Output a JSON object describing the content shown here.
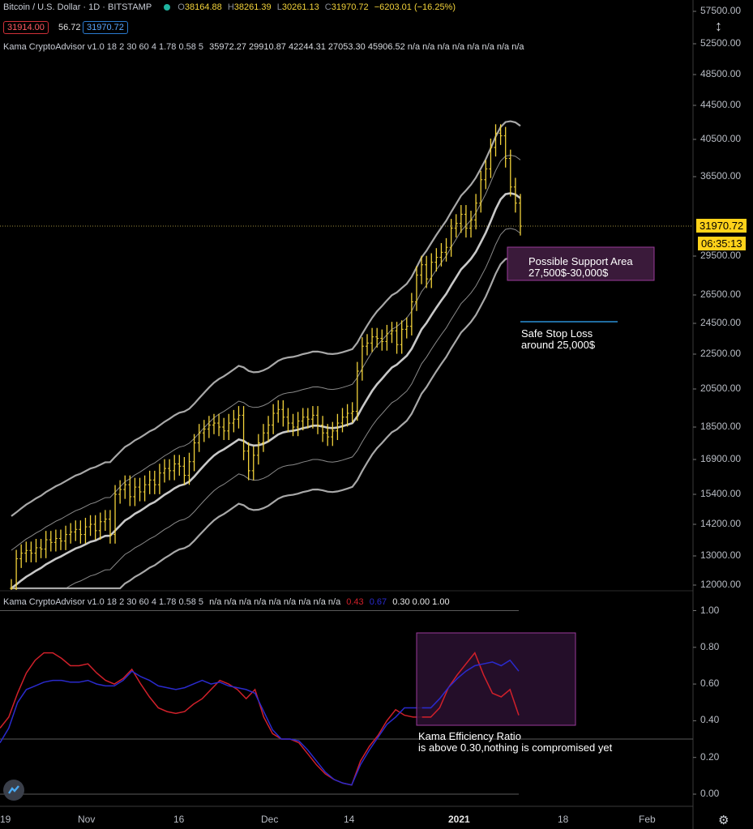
{
  "header": {
    "symbol": "Bitcoin / U.S. Dollar · 1D · BITSTAMP",
    "open_label": "O",
    "open": "38164.88",
    "high_label": "H",
    "high": "38261.39",
    "low_label": "L",
    "low": "30261.13",
    "close_label": "C",
    "close": "31970.72",
    "change": "−6203.01 (−16.25%)",
    "bid": "31914.00",
    "spread": "56.72",
    "ask": "31970.72",
    "indicator_main": "Kama CryptoAdvisor v1.0 18 2 30 60 4 1.78 0.58 5",
    "indicator_main_values": "35972.27  29910.87  42244.31  27053.30  45906.52  n/a  n/a  n/a  n/a  n/a  n/a  n/a  n/a",
    "indicator_sub": "Kama CryptoAdvisor v1.0 18 2 30 60 4 1.78 0.58 5",
    "indicator_sub_na": "n/a  n/a  n/a  n/a  n/a  n/a  n/a  n/a  n/a",
    "indicator_sub_red": "0.43",
    "indicator_sub_blue": "0.67",
    "indicator_sub_rest": "0.30  0.00  1.00"
  },
  "price_axis": {
    "ticks": [
      "57500.00",
      "52500.00",
      "48500.00",
      "44500.00",
      "40500.00",
      "36500.00",
      "29500.00",
      "26500.00",
      "24500.00",
      "22500.00",
      "20500.00",
      "18500.00",
      "16900.00",
      "15400.00",
      "14200.00",
      "13000.00",
      "12000.00"
    ],
    "last_price": "31970.72",
    "countdown": "06:35:13"
  },
  "sub_axis": {
    "ticks": [
      "1.00",
      "0.80",
      "0.60",
      "0.40",
      "0.20",
      "0.00"
    ]
  },
  "time_axis": {
    "labels": [
      "19",
      "Nov",
      "16",
      "Dec",
      "14",
      "2021",
      "18",
      "Feb"
    ]
  },
  "annotations": {
    "support_line1": "Possible Support Area",
    "support_line2": "27,500$-30,000$",
    "stop_line1": "Safe Stop Loss",
    "stop_line2": "around 25,000$",
    "eff_line1": "Kama Efficiency Ratio",
    "eff_line2": "is above 0.30,nothing is compromised yet"
  },
  "colors": {
    "candle": "#f2d23a",
    "band": "#b0b0b0",
    "er_red": "#d0202a",
    "er_blue": "#2a2acc",
    "box": "#3a1a3a",
    "box_border": "#9a3a9a"
  },
  "chart_data": [
    {
      "type": "line",
      "title": "Bitcoin / U.S. Dollar · 1D · BITSTAMP",
      "yscale": "log",
      "ylim": [
        11900,
        60000
      ],
      "x_labels": [
        "19",
        "Nov",
        "16",
        "Dec",
        "14",
        "2021",
        "18",
        "Feb"
      ],
      "candles_close": [
        11900,
        12900,
        13100,
        13200,
        13100,
        13300,
        13250,
        13600,
        13500,
        13650,
        13550,
        13800,
        13900,
        14000,
        13800,
        14100,
        14200,
        13950,
        14300,
        14400,
        13800,
        15400,
        15600,
        15800,
        15300,
        15700,
        15500,
        15800,
        16000,
        15800,
        16300,
        16500,
        16400,
        16700,
        16600,
        16200,
        16800,
        17700,
        18200,
        18400,
        18600,
        18700,
        18500,
        18300,
        18700,
        18900,
        19100,
        17300,
        16400,
        17100,
        17700,
        18200,
        18600,
        19200,
        19400,
        19000,
        18700,
        18500,
        18800,
        19000,
        18900,
        19100,
        18600,
        18200,
        18000,
        18300,
        18700,
        19000,
        19200,
        19300,
        21500,
        23000,
        23200,
        23600,
        23500,
        23300,
        23800,
        24000,
        23100,
        24100,
        24300,
        26000,
        28000,
        28800,
        27700,
        29000,
        29400,
        29800,
        30200,
        31800,
        32200,
        33000,
        31800,
        32500,
        34000,
        36200,
        37300,
        39600,
        41200,
        40900,
        38400,
        35500,
        34000,
        31970
      ],
      "series": [],
      "er_series": [
        {
          "name": "red",
          "values": [
            0.36,
            0.42,
            0.55,
            0.66,
            0.73,
            0.77,
            0.77,
            0.74,
            0.7,
            0.7,
            0.71,
            0.66,
            0.62,
            0.6,
            0.63,
            0.68,
            0.6,
            0.53,
            0.47,
            0.45,
            0.44,
            0.45,
            0.49,
            0.52,
            0.57,
            0.62,
            0.6,
            0.57,
            0.52,
            0.57,
            0.42,
            0.33,
            0.3,
            0.3,
            0.28,
            0.22,
            0.16,
            0.11,
            0.08,
            0.06,
            0.05,
            0.18,
            0.26,
            0.32,
            0.4,
            0.46,
            0.43,
            0.42,
            0.42,
            0.42,
            0.47,
            0.58,
            0.65,
            0.71,
            0.77,
            0.65,
            0.55,
            0.53,
            0.57,
            0.43
          ]
        },
        {
          "name": "blue",
          "values": [
            0.28,
            0.36,
            0.5,
            0.57,
            0.59,
            0.61,
            0.62,
            0.62,
            0.61,
            0.61,
            0.62,
            0.6,
            0.59,
            0.59,
            0.62,
            0.67,
            0.64,
            0.62,
            0.59,
            0.58,
            0.57,
            0.58,
            0.6,
            0.62,
            0.6,
            0.61,
            0.59,
            0.58,
            0.57,
            0.55,
            0.45,
            0.35,
            0.3,
            0.3,
            0.29,
            0.24,
            0.18,
            0.12,
            0.08,
            0.06,
            0.05,
            0.16,
            0.24,
            0.31,
            0.38,
            0.42,
            0.47,
            0.47,
            0.47,
            0.47,
            0.52,
            0.58,
            0.63,
            0.67,
            0.7,
            0.71,
            0.72,
            0.7,
            0.73,
            0.67
          ]
        }
      ]
    }
  ]
}
